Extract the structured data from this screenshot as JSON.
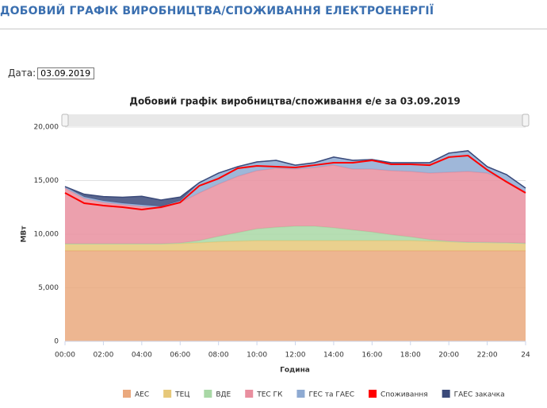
{
  "header": {
    "title": "ДОБОВИЙ ГРАФІК ВИРОБНИЦТВА/СПОЖИВАННЯ ЕЛЕКТРОЕНЕРГІЇ"
  },
  "date_label": "Дата:",
  "date_value": "03.09.2019",
  "chart_data": {
    "type": "area",
    "stacked": true,
    "title": "Добовий графік виробництва/споживання е/е за 03.09.2019",
    "x_label": "Година",
    "y_label": "МВт",
    "x": [
      0,
      1,
      2,
      3,
      4,
      5,
      6,
      7,
      8,
      9,
      10,
      11,
      12,
      13,
      14,
      15,
      16,
      17,
      18,
      19,
      20,
      21,
      22,
      23,
      24
    ],
    "xlim": [
      0,
      24
    ],
    "xticks": [
      {
        "value": 0,
        "label": "00:00"
      },
      {
        "value": 2,
        "label": "02:00"
      },
      {
        "value": 4,
        "label": "04:00"
      },
      {
        "value": 6,
        "label": "06:00"
      },
      {
        "value": 8,
        "label": "08:00"
      },
      {
        "value": 10,
        "label": "10:00"
      },
      {
        "value": 12,
        "label": "12:00"
      },
      {
        "value": 14,
        "label": "14:00"
      },
      {
        "value": 16,
        "label": "16:00"
      },
      {
        "value": 18,
        "label": "18:00"
      },
      {
        "value": 20,
        "label": "20:00"
      },
      {
        "value": 22,
        "label": "22:00"
      },
      24
    ],
    "ylim": [
      0,
      20000
    ],
    "yticks": [
      0,
      {
        "value": 5000,
        "label": "5,000"
      },
      {
        "value": 10000,
        "label": "10,000"
      },
      {
        "value": 15000,
        "label": "15,000"
      },
      {
        "value": 20000,
        "label": "20,000"
      }
    ],
    "grid": true,
    "legend": "bottom",
    "series": [
      {
        "name": "АЕС",
        "color": "#eaa97e",
        "values": [
          8450,
          8450,
          8450,
          8450,
          8450,
          8450,
          8450,
          8450,
          8450,
          8450,
          8450,
          8450,
          8450,
          8450,
          8450,
          8450,
          8450,
          8450,
          8450,
          8450,
          8450,
          8450,
          8450,
          8450,
          8450
        ]
      },
      {
        "name": "ТЕЦ",
        "color": "#e6c87a",
        "values": [
          650,
          650,
          650,
          650,
          650,
          650,
          680,
          750,
          850,
          900,
          950,
          950,
          950,
          950,
          950,
          950,
          950,
          950,
          950,
          900,
          850,
          800,
          780,
          750,
          700
        ]
      },
      {
        "name": "ВДЕ",
        "color": "#a9d8a6",
        "values": [
          0,
          0,
          0,
          0,
          0,
          0,
          50,
          200,
          500,
          800,
          1100,
          1250,
          1350,
          1350,
          1200,
          1000,
          800,
          550,
          350,
          150,
          30,
          0,
          0,
          0,
          0
        ]
      },
      {
        "name": "ТЕС ГК",
        "color": "#e98f9f",
        "values": [
          5200,
          4230,
          3860,
          3640,
          3490,
          3340,
          3780,
          4450,
          4870,
          5250,
          5430,
          5500,
          5320,
          5470,
          5840,
          5670,
          5870,
          5980,
          6100,
          6200,
          6450,
          6600,
          6470,
          5760,
          4780
        ]
      },
      {
        "name": "ГЕС та ГАЕС",
        "color": "#8eaad2",
        "values": [
          140,
          150,
          150,
          150,
          150,
          150,
          150,
          960,
          1030,
          900,
          810,
          740,
          370,
          450,
          750,
          820,
          890,
          740,
          820,
          970,
          1780,
          1930,
          600,
          600,
          370
        ]
      },
      {
        "name": "Споживання",
        "color": "#ff0000",
        "type": "line",
        "values": [
          13850,
          12890,
          12670,
          12520,
          12300,
          12520,
          12960,
          14520,
          15190,
          16150,
          16370,
          16300,
          16220,
          16440,
          16670,
          16670,
          16890,
          16520,
          16520,
          16440,
          17190,
          17330,
          16000,
          14890,
          13850
        ]
      },
      {
        "name": "ГАЕС закачка",
        "color": "#3b4a7a",
        "values": [
          0,
          250,
          400,
          550,
          800,
          600,
          350,
          0,
          0,
          0,
          0,
          0,
          0,
          0,
          0,
          0,
          0,
          0,
          0,
          0,
          0,
          0,
          0,
          0,
          0
        ]
      }
    ]
  }
}
